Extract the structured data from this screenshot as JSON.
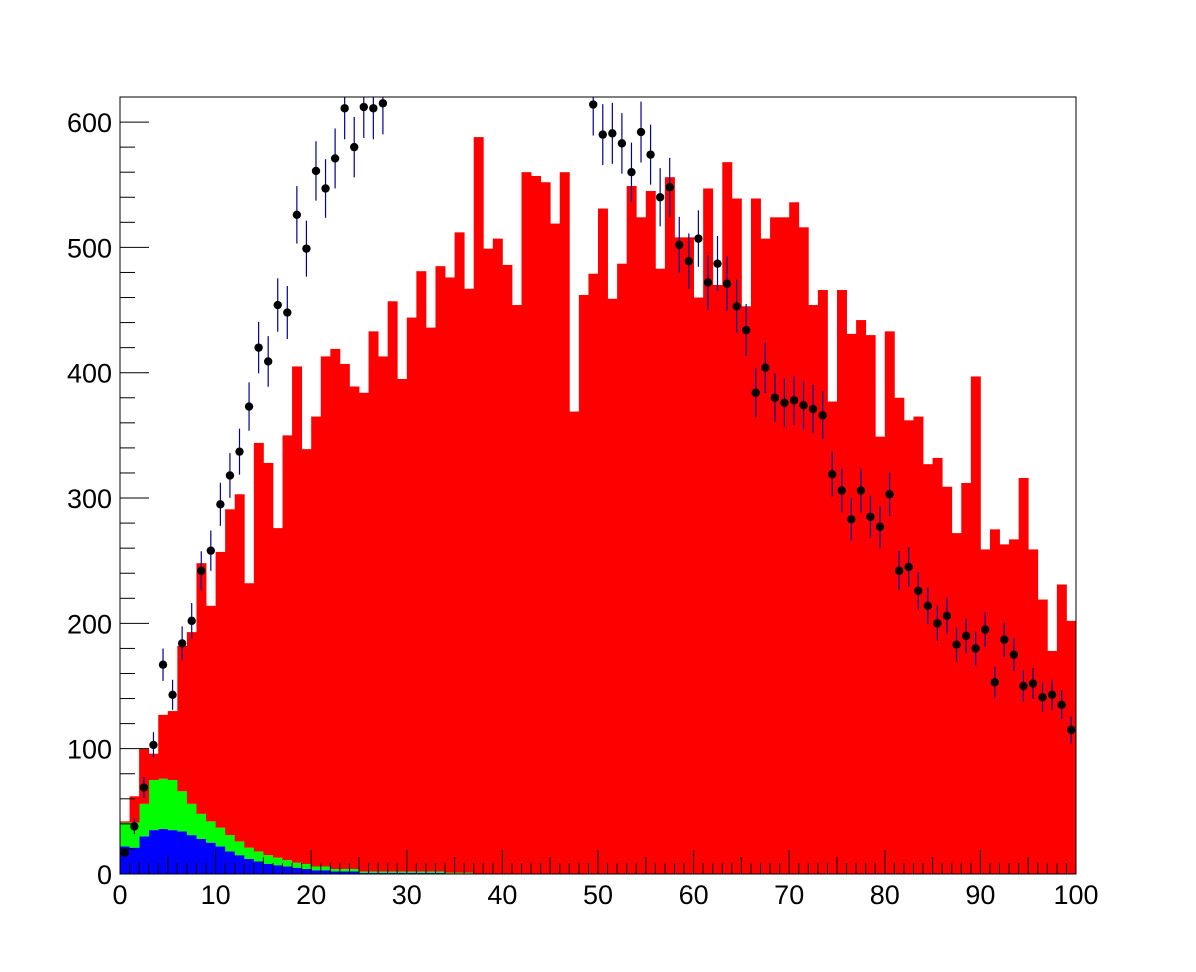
{
  "chart_data": {
    "type": "bar",
    "title": "",
    "xlabel": "",
    "ylabel": "",
    "xlim": [
      0,
      100
    ],
    "ylim": [
      0,
      620
    ],
    "bins": 100,
    "x_tick_labels": [
      "0",
      "10",
      "20",
      "30",
      "40",
      "50",
      "60",
      "70",
      "80",
      "90",
      "100"
    ],
    "y_tick_labels": [
      "0",
      "100",
      "200",
      "300",
      "400",
      "500",
      "600"
    ],
    "colors": {
      "stack_top": "#ff0000",
      "stack_mid": "#00ff00",
      "stack_bottom": "#0000ff",
      "data_marker": "#000000",
      "error_bar": "#000099"
    },
    "stack": [
      {
        "color": "#0000ff",
        "values": [
          22,
          21,
          30,
          35,
          36,
          35,
          34,
          31,
          28,
          25,
          22,
          18,
          15,
          12,
          10,
          8,
          7,
          6,
          5,
          4,
          3,
          3,
          2,
          2,
          2,
          1,
          1,
          1,
          1,
          1,
          1,
          1,
          1,
          1,
          0,
          0,
          0,
          0,
          0,
          0,
          0,
          0,
          0,
          0,
          0,
          0,
          0,
          0,
          0,
          0,
          0,
          0,
          0,
          0,
          0,
          0,
          0,
          0,
          0,
          0,
          0,
          0,
          0,
          0,
          0,
          0,
          0,
          0,
          0,
          0,
          0,
          0,
          0,
          0,
          0,
          0,
          0,
          0,
          0,
          0,
          0,
          0,
          0,
          0,
          0,
          0,
          0,
          0,
          0,
          0,
          0,
          0,
          0,
          0,
          0,
          0,
          0,
          0,
          0,
          0
        ]
      },
      {
        "color": "#00ff00",
        "values": [
          19,
          20,
          26,
          40,
          40,
          40,
          32,
          25,
          20,
          17,
          15,
          13,
          11,
          9,
          8,
          7,
          6,
          5,
          4,
          4,
          3,
          3,
          2,
          2,
          2,
          1,
          1,
          1,
          1,
          1,
          1,
          1,
          1,
          1,
          1,
          1,
          1,
          0,
          0,
          0,
          0,
          0,
          0,
          0,
          0,
          0,
          0,
          0,
          0,
          0,
          0,
          0,
          0,
          0,
          0,
          0,
          0,
          0,
          0,
          0,
          0,
          0,
          0,
          0,
          0,
          0,
          0,
          0,
          0,
          0,
          0,
          0,
          0,
          0,
          0,
          0,
          0,
          0,
          0,
          0,
          0,
          0,
          0,
          0,
          0,
          0,
          0,
          0,
          0,
          0,
          0,
          0,
          0,
          0,
          0,
          0,
          0,
          0,
          0,
          0
        ]
      },
      {
        "color": "#ff0000",
        "values": [
          1,
          21,
          44,
          21,
          51,
          55,
          116,
          137,
          200,
          172,
          220,
          260,
          277,
          211,
          326,
          313,
          263,
          339,
          396,
          331,
          359,
          407,
          415,
          403,
          385,
          382,
          431,
          411,
          455,
          393,
          442,
          479,
          434,
          483,
          475,
          511,
          466,
          588,
          499,
          507,
          486,
          454,
          560,
          557,
          552,
          519,
          560,
          369,
          462,
          479,
          531,
          459,
          487,
          549,
          524,
          545,
          483,
          556,
          508,
          508,
          460,
          547,
          470,
          568,
          539,
          453,
          539,
          507,
          524,
          524,
          536,
          516,
          454,
          466,
          377,
          466,
          431,
          442,
          430,
          349,
          433,
          380,
          362,
          365,
          327,
          332,
          309,
          272,
          312,
          397,
          259,
          275,
          263,
          267,
          316,
          259,
          219,
          178,
          231,
          202
        ]
      }
    ],
    "points": {
      "x": [
        0.5,
        1.5,
        2.5,
        3.5,
        4.5,
        5.5,
        6.5,
        7.5,
        8.5,
        9.5,
        10.5,
        11.5,
        12.5,
        13.5,
        14.5,
        15.5,
        16.5,
        17.5,
        18.5,
        19.5,
        20.5,
        21.5,
        22.5,
        23.5,
        24.5,
        25.5,
        26.5,
        27.5,
        49.5,
        50.5,
        51.5,
        52.5,
        53.5,
        54.5,
        55.5,
        56.5,
        57.5,
        58.5,
        59.5,
        60.5,
        61.5,
        62.5,
        63.5,
        64.5,
        65.5,
        66.5,
        67.5,
        68.5,
        69.5,
        70.5,
        71.5,
        72.5,
        73.5,
        74.5,
        75.5,
        76.5,
        77.5,
        78.5,
        79.5,
        80.5,
        81.5,
        82.5,
        83.5,
        84.5,
        85.5,
        86.5,
        87.5,
        88.5,
        89.5,
        90.5,
        91.5,
        92.5,
        93.5,
        94.5,
        95.5,
        96.5,
        97.5,
        98.5,
        99.5
      ],
      "y": [
        17,
        38,
        69,
        103,
        167,
        143,
        184,
        202,
        242,
        258,
        295,
        318,
        337,
        373,
        420,
        409,
        454,
        448,
        526,
        499,
        561,
        547,
        571,
        611,
        580,
        612,
        611,
        615,
        614,
        590,
        591,
        583,
        560,
        592,
        574,
        540,
        548,
        502,
        489,
        507,
        472,
        487,
        471,
        453,
        434,
        384,
        404,
        380,
        376,
        378,
        374,
        371,
        366,
        319,
        306,
        283,
        306,
        285,
        277,
        303,
        242,
        245,
        226,
        214,
        200,
        206,
        183,
        190,
        180,
        195,
        153,
        187,
        175,
        150,
        152,
        141,
        143,
        135,
        115
      ]
    }
  }
}
